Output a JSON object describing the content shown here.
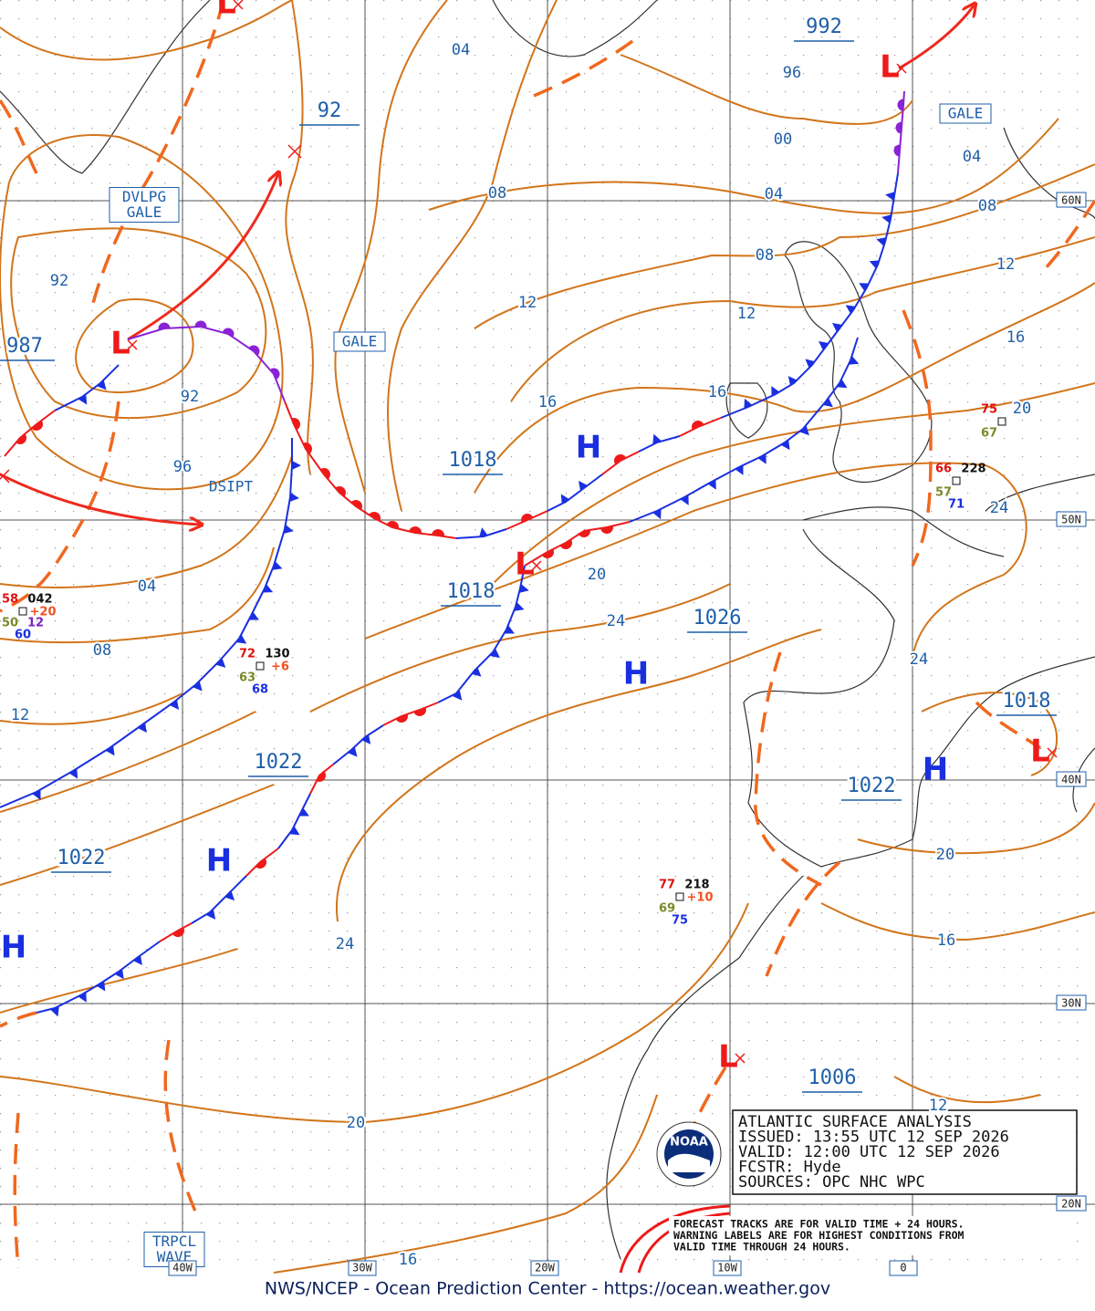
{
  "map": {
    "box_lines": [
      "ATLANTIC SURFACE ANALYSIS",
      "ISSUED:  13:55 UTC 12 SEP 2026",
      "VALID:   12:00 UTC 12 SEP 2026",
      "FCSTR:   Hyde",
      "SOURCES:  OPC NHC WPC"
    ],
    "note_lines": [
      "FORECAST TRACKS ARE FOR VALID TIME + 24 HOURS.",
      "WARNING LABELS ARE FOR HIGHEST CONDITIONS FROM",
      "VALID TIME THROUGH 24 HOURS."
    ],
    "footer": "NWS/NCEP - Ocean Prediction Center - https://ocean.weather.gov",
    "logo": "NOAA",
    "lat_labels": [
      "60N",
      "50N",
      "40N",
      "30N",
      "20N"
    ],
    "lon_labels": [
      "40W",
      "30W",
      "20W",
      "10W",
      "0"
    ],
    "pressure_centers": [
      "992",
      "92",
      "987",
      "1018",
      "1018",
      "1026",
      "1022",
      "1022",
      "1022",
      "1018",
      "1006"
    ],
    "isobar_labels": [
      "04",
      "96",
      "00",
      "08",
      "04",
      "04",
      "08",
      "08",
      "92",
      "12",
      "12",
      "12",
      "16",
      "92",
      "16",
      "16",
      "20",
      "96",
      "24",
      "04",
      "20",
      "24",
      "08",
      "24",
      "12",
      "20",
      "16",
      "24",
      "20",
      "12",
      "16"
    ],
    "warnings": [
      [
        "DVLPG",
        "GALE"
      ],
      [
        "GALE"
      ],
      [
        "GALE"
      ],
      [
        "DSIPT"
      ],
      [
        "TRPCL",
        "WAVE"
      ]
    ],
    "highs": [
      "H",
      "H",
      "H",
      "H",
      "H"
    ],
    "lows": [
      "L",
      "L",
      "L",
      "L",
      "L",
      "L"
    ],
    "stations": [
      {
        "temp": "58",
        "pressure": "042",
        "tendency": "+20",
        "dewpoint": "50",
        "extra": "12",
        "sea": "60"
      },
      {
        "temp": "72",
        "pressure": "130",
        "tendency": "+6",
        "dewpoint": "63",
        "sea": "68"
      },
      {
        "temp": "66",
        "pressure": "228",
        "dewpoint": "57",
        "sea": "71"
      },
      {
        "temp": "75",
        "dewpoint": "67"
      },
      {
        "temp": "77",
        "pressure": "218",
        "tendency": "+10",
        "dewpoint": "69",
        "sea": "75"
      }
    ]
  }
}
